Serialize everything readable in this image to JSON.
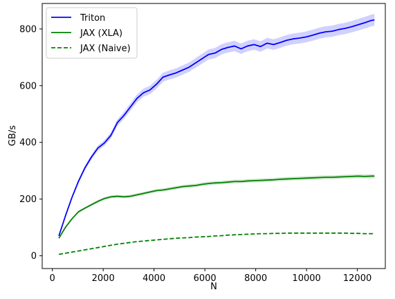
{
  "chart_data": {
    "type": "line",
    "title": "",
    "xlabel": "N",
    "ylabel": "GB/s",
    "xlim": [
      -400,
      13100
    ],
    "ylim": [
      -45,
      890
    ],
    "grid": false,
    "legend_position": "top-left",
    "x_ticks": [
      0,
      2000,
      4000,
      6000,
      8000,
      10000,
      12000
    ],
    "y_ticks": [
      0,
      200,
      400,
      600,
      800
    ],
    "x_tick_labels": [
      "0",
      "2000",
      "4000",
      "6000",
      "8000",
      "10000",
      "12000"
    ],
    "y_tick_labels": [
      "0",
      "200",
      "400",
      "600",
      "800"
    ],
    "series": [
      {
        "name": "Triton",
        "color": "#0000ff",
        "dash": "solid",
        "band": true,
        "x": [
          256,
          512,
          768,
          1024,
          1280,
          1536,
          1792,
          2048,
          2304,
          2560,
          2816,
          3072,
          3328,
          3584,
          3840,
          4096,
          4352,
          4608,
          4864,
          5120,
          5376,
          5632,
          5888,
          6144,
          6400,
          6656,
          6912,
          7168,
          7424,
          7680,
          7936,
          8192,
          8448,
          8704,
          8960,
          9216,
          9472,
          9728,
          9984,
          10240,
          10496,
          10752,
          11008,
          11264,
          11520,
          11776,
          12032,
          12288,
          12544,
          12672
        ],
        "values": [
          70,
          140,
          205,
          262,
          310,
          348,
          380,
          398,
          425,
          470,
          495,
          525,
          555,
          575,
          585,
          605,
          630,
          638,
          645,
          655,
          665,
          680,
          695,
          710,
          715,
          728,
          735,
          740,
          730,
          740,
          745,
          738,
          750,
          745,
          752,
          760,
          765,
          768,
          772,
          778,
          785,
          790,
          792,
          798,
          802,
          808,
          815,
          822,
          830,
          832
        ]
      },
      {
        "name": "JAX (XLA)",
        "color": "#008000",
        "dash": "solid",
        "band": true,
        "x": [
          256,
          512,
          768,
          1024,
          1280,
          1536,
          1792,
          2048,
          2304,
          2560,
          2816,
          3072,
          3328,
          3584,
          3840,
          4096,
          4352,
          4608,
          4864,
          5120,
          5376,
          5632,
          5888,
          6144,
          6400,
          6656,
          6912,
          7168,
          7424,
          7680,
          7936,
          8192,
          8448,
          8704,
          8960,
          9216,
          9472,
          9728,
          9984,
          10240,
          10496,
          10752,
          11008,
          11264,
          11520,
          11776,
          12032,
          12288,
          12544,
          12672
        ],
        "values": [
          62,
          100,
          130,
          155,
          168,
          180,
          192,
          202,
          208,
          210,
          208,
          210,
          215,
          220,
          225,
          230,
          232,
          236,
          240,
          244,
          246,
          248,
          252,
          255,
          257,
          258,
          260,
          262,
          262,
          264,
          265,
          266,
          267,
          268,
          270,
          271,
          272,
          273,
          274,
          275,
          276,
          277,
          277,
          278,
          279,
          280,
          281,
          280,
          281,
          281
        ]
      },
      {
        "name": "JAX (Naive)",
        "color": "#008000",
        "dash": "dashed",
        "band": false,
        "x": [
          256,
          512,
          768,
          1024,
          1280,
          1536,
          1792,
          2048,
          2304,
          2560,
          2816,
          3072,
          3328,
          3584,
          3840,
          4096,
          4352,
          4608,
          4864,
          5120,
          5376,
          5632,
          5888,
          6144,
          6400,
          6656,
          6912,
          7168,
          7424,
          7680,
          7936,
          8192,
          8448,
          8704,
          8960,
          9216,
          9472,
          9728,
          9984,
          10240,
          10496,
          10752,
          11008,
          11264,
          11520,
          11776,
          12032,
          12288,
          12544,
          12672
        ],
        "values": [
          5,
          9,
          13,
          17,
          21,
          25,
          29,
          33,
          37,
          41,
          44,
          47,
          50,
          52,
          54,
          56,
          58,
          60,
          62,
          63,
          64,
          66,
          67,
          68,
          70,
          71,
          73,
          74,
          75,
          76,
          77,
          78,
          78,
          79,
          79,
          80,
          80,
          80,
          80,
          80,
          80,
          80,
          80,
          80,
          80,
          79,
          79,
          78,
          78,
          78
        ]
      }
    ]
  }
}
